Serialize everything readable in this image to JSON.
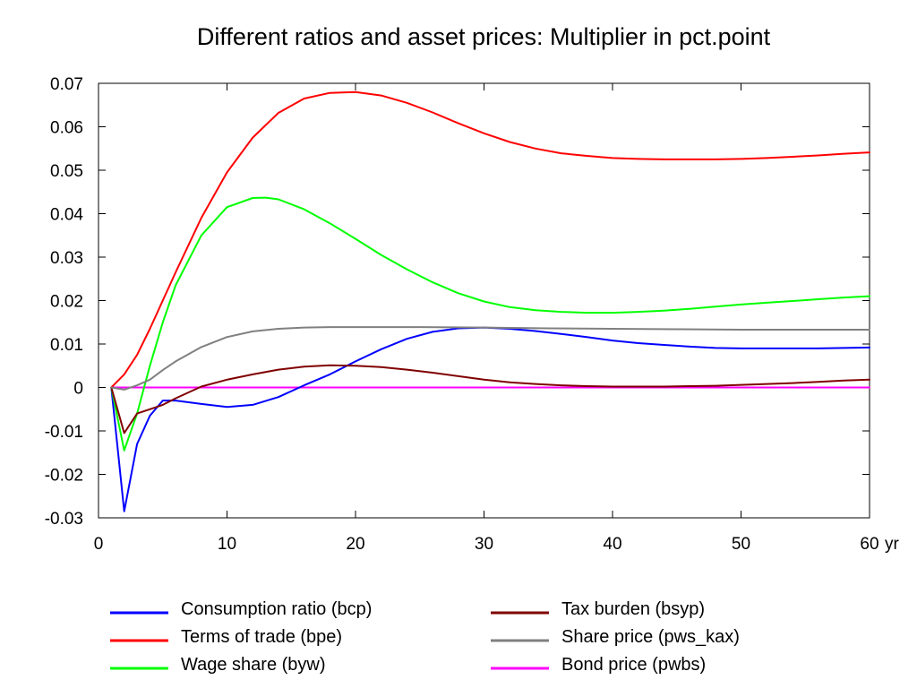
{
  "chart_data": {
    "type": "line",
    "title": "Different ratios and asset prices: Multiplier in pct.point",
    "x_unit_label": "yr",
    "xlim": [
      0,
      60
    ],
    "ylim": [
      -0.03,
      0.07
    ],
    "x_ticks": [
      "0",
      "10",
      "20",
      "30",
      "40",
      "50",
      "60"
    ],
    "y_ticks": [
      "0.07",
      "0.06",
      "0.05",
      "0.04",
      "0.03",
      "0.02",
      "0.01",
      "0",
      "-0.01",
      "-0.02",
      "-0.03"
    ],
    "grid": false,
    "legend_placement": "bottom",
    "series": [
      {
        "name": "Consumption ratio (bcp)",
        "color": "#0000ff",
        "x": [
          1,
          2,
          3,
          4,
          5,
          6,
          8,
          10,
          12,
          14,
          16,
          18,
          20,
          22,
          24,
          26,
          28,
          30,
          32,
          34,
          36,
          38,
          40,
          42,
          44,
          46,
          48,
          50,
          52,
          54,
          56,
          58,
          60
        ],
        "values": [
          0,
          -0.0285,
          -0.013,
          -0.0065,
          -0.003,
          -0.003,
          -0.0038,
          -0.0045,
          -0.004,
          -0.0022,
          0.0005,
          0.003,
          0.006,
          0.0088,
          0.0112,
          0.0128,
          0.0136,
          0.0138,
          0.0135,
          0.013,
          0.0123,
          0.0116,
          0.0108,
          0.0102,
          0.0098,
          0.0094,
          0.0091,
          0.009,
          0.009,
          0.009,
          0.009,
          0.0091,
          0.0092
        ]
      },
      {
        "name": "Terms of trade (bpe)",
        "color": "#ff0000",
        "x": [
          1,
          2,
          3,
          4,
          6,
          8,
          10,
          12,
          14,
          16,
          18,
          20,
          22,
          24,
          26,
          28,
          30,
          32,
          34,
          36,
          38,
          40,
          42,
          44,
          46,
          48,
          50,
          52,
          54,
          56,
          58,
          60
        ],
        "values": [
          0,
          0.003,
          0.0075,
          0.0135,
          0.0265,
          0.039,
          0.0495,
          0.0575,
          0.0632,
          0.0665,
          0.0678,
          0.068,
          0.0672,
          0.0655,
          0.0633,
          0.0608,
          0.0585,
          0.0565,
          0.055,
          0.0539,
          0.0533,
          0.0528,
          0.0526,
          0.0525,
          0.0525,
          0.0525,
          0.0526,
          0.0528,
          0.0531,
          0.0534,
          0.0538,
          0.0541
        ]
      },
      {
        "name": "Wage share (byw)",
        "color": "#00ff00",
        "x": [
          1,
          2,
          3,
          4,
          5,
          6,
          8,
          10,
          12,
          13,
          14,
          16,
          18,
          20,
          22,
          24,
          26,
          28,
          30,
          32,
          34,
          36,
          38,
          40,
          42,
          44,
          46,
          48,
          50,
          52,
          54,
          56,
          58,
          60
        ],
        "values": [
          0,
          -0.0145,
          -0.006,
          0.005,
          0.015,
          0.0235,
          0.035,
          0.0415,
          0.0436,
          0.0437,
          0.0433,
          0.041,
          0.0378,
          0.0342,
          0.0305,
          0.0272,
          0.0242,
          0.0217,
          0.0198,
          0.0185,
          0.0178,
          0.0174,
          0.0172,
          0.0172,
          0.0174,
          0.0177,
          0.0181,
          0.0186,
          0.0191,
          0.0195,
          0.0199,
          0.0203,
          0.0207,
          0.021
        ]
      },
      {
        "name": "Tax burden (bsyp)",
        "color": "#800000",
        "x": [
          1,
          2,
          3,
          4,
          5,
          6,
          8,
          10,
          12,
          14,
          16,
          18,
          20,
          22,
          24,
          26,
          28,
          30,
          32,
          34,
          36,
          38,
          40,
          42,
          44,
          46,
          48,
          50,
          52,
          54,
          56,
          58,
          60
        ],
        "values": [
          0,
          -0.0105,
          -0.006,
          -0.005,
          -0.004,
          -0.0025,
          0.0002,
          0.0018,
          0.003,
          0.0041,
          0.0048,
          0.0051,
          0.005,
          0.0047,
          0.0041,
          0.0034,
          0.0026,
          0.0018,
          0.0012,
          0.0008,
          0.0005,
          0.0003,
          0.0002,
          0.0002,
          0.0002,
          0.0003,
          0.0004,
          0.0006,
          0.0008,
          0.001,
          0.0013,
          0.0016,
          0.0018
        ]
      },
      {
        "name": "Share price (pws_kax)",
        "color": "#808080",
        "x": [
          1,
          2,
          3,
          4,
          5,
          6,
          8,
          10,
          12,
          14,
          16,
          18,
          20,
          25,
          30,
          35,
          40,
          45,
          50,
          55,
          60
        ],
        "values": [
          0,
          -0.0005,
          0.0005,
          0.0018,
          0.004,
          0.006,
          0.0093,
          0.0116,
          0.0129,
          0.0135,
          0.0138,
          0.0139,
          0.0139,
          0.0139,
          0.0138,
          0.0136,
          0.0135,
          0.0134,
          0.0133,
          0.0133,
          0.0133
        ]
      },
      {
        "name": "Bond price (pwbs)",
        "color": "#ff00ff",
        "x": [
          1,
          60
        ],
        "values": [
          0,
          0
        ]
      }
    ]
  }
}
